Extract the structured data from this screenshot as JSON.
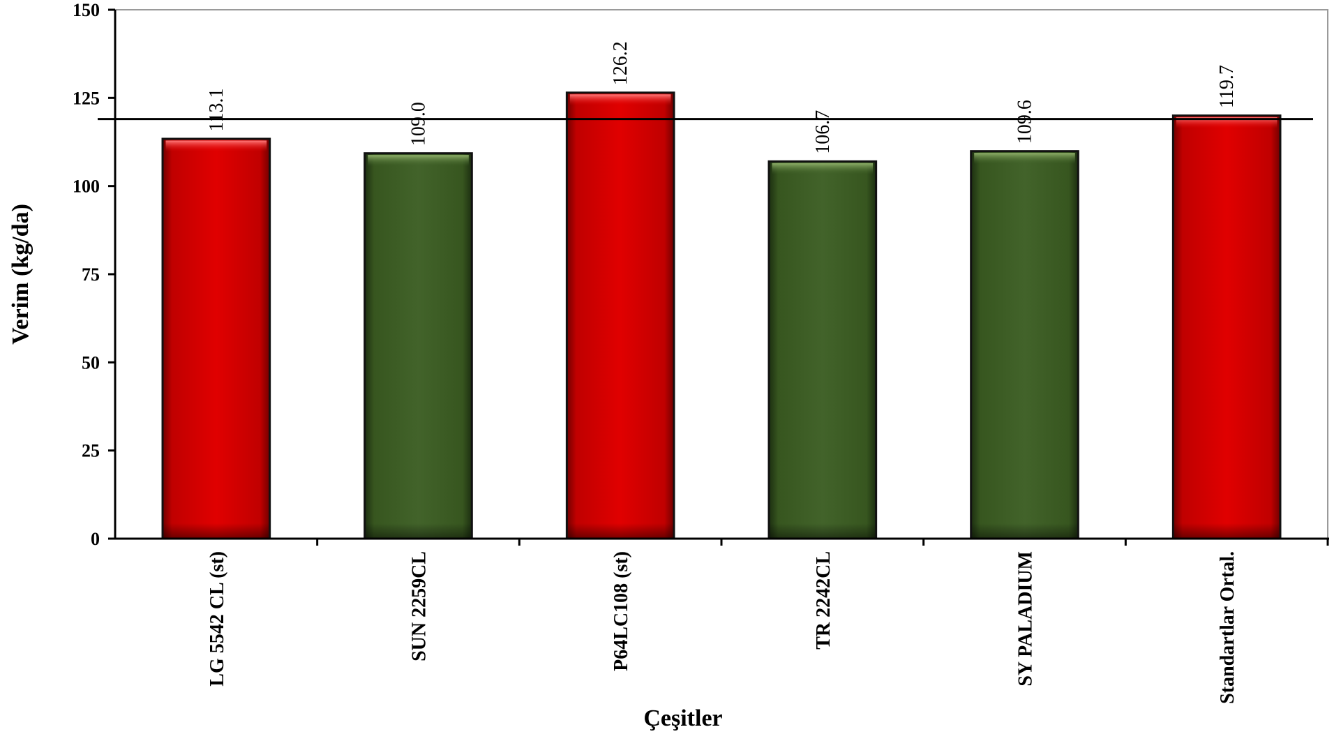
{
  "chart_data": {
    "type": "bar",
    "categories": [
      "LG 5542 CL (st)",
      "SUN 2259CL",
      "P64LC108 (st)",
      "TR 2242CL",
      "SY PALADIUM",
      "Standartlar Ortal."
    ],
    "values": [
      113.1,
      109.0,
      126.2,
      106.7,
      109.6,
      119.7
    ],
    "data_labels": [
      "113.1",
      "109.0",
      "126.2",
      "106.7",
      "109.6",
      "119.7"
    ],
    "bar_colors": [
      "#d40000",
      "#3e5e27",
      "#d40000",
      "#3e5e27",
      "#3e5e27",
      "#d40000"
    ],
    "xlabel": "Çeşitler",
    "ylabel": "Verim (kg/da)",
    "ylim": [
      0,
      150
    ],
    "yticks": [
      0,
      25,
      50,
      75,
      100,
      125,
      150
    ],
    "reference_line": 119,
    "grid": false,
    "legend": "none"
  }
}
